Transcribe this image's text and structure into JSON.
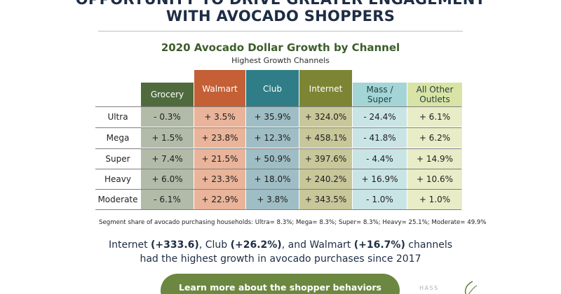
{
  "header": {
    "line1": "OPPORTUNITY TO DRIVE GREATER ENGAGEMENT",
    "line2": "WITH AVOCADO SHOPPERS"
  },
  "table": {
    "title": "2020 Avocado Dollar Growth by Channel",
    "subtitle": "Highest Growth Channels",
    "columns": [
      {
        "lines": [
          "Grocery"
        ],
        "color": "#4f6b3d"
      },
      {
        "lines": [
          "Walmart"
        ],
        "color": "#c45f36"
      },
      {
        "lines": [
          "Club"
        ],
        "color": "#2f7d86"
      },
      {
        "lines": [
          "Internet"
        ],
        "color": "#7d8534"
      },
      {
        "lines": [
          "Mass /",
          "Super"
        ],
        "color": "#a3d5d6"
      },
      {
        "lines": [
          "All Other",
          "Outlets"
        ],
        "color": "#d9e3a6"
      }
    ],
    "cell_colors": [
      "#b2bba8",
      "#e9b49a",
      "#9fbdc4",
      "#c7c79a",
      "#c9e4e4",
      "#e8edc8"
    ],
    "rows": [
      {
        "label": "Ultra",
        "values": [
          "- 0.3%",
          "+ 3.5%",
          "+ 35.9%",
          "+ 324.0%",
          "- 24.4%",
          "+ 6.1%"
        ]
      },
      {
        "label": "Mega",
        "values": [
          "+ 1.5%",
          "+ 23.8%",
          "+ 12.3%",
          "+ 458.1%",
          "- 41.8%",
          "+ 6.2%"
        ]
      },
      {
        "label": "Super",
        "values": [
          "+ 7.4%",
          "+ 21.5%",
          "+ 50.9%",
          "+ 397.6%",
          "- 4.4%",
          "+ 14.9%"
        ]
      },
      {
        "label": "Heavy",
        "values": [
          "+ 6.0%",
          "+ 23.3%",
          "+ 18.0%",
          "+ 240.2%",
          "+ 16.9%",
          "+ 10.6%"
        ]
      },
      {
        "label": "Moderate",
        "values": [
          "- 6.1%",
          "+ 22.9%",
          "+ 3.8%",
          "+ 343.5%",
          "- 1.0%",
          "+ 1.0%"
        ]
      }
    ],
    "footnote": "Segment share of avocado purchasing households: Ultra= 8.3%; Mega= 8.3%; Super= 8.3%; Heavy= 25.1%; Moderate= 49.9%"
  },
  "summary": {
    "line1_parts": [
      "Internet ",
      "(+333.6)",
      ", Club ",
      "(+26.2%)",
      ", and Walmart ",
      "(+16.7%)",
      " channels"
    ],
    "line2": "had the highest growth in avocado purchases since 2017"
  },
  "cta": {
    "label": "Learn more about the shopper behaviors driving"
  },
  "logo": {
    "text": "HASS",
    "icon": "avocado-leaf-icon"
  }
}
